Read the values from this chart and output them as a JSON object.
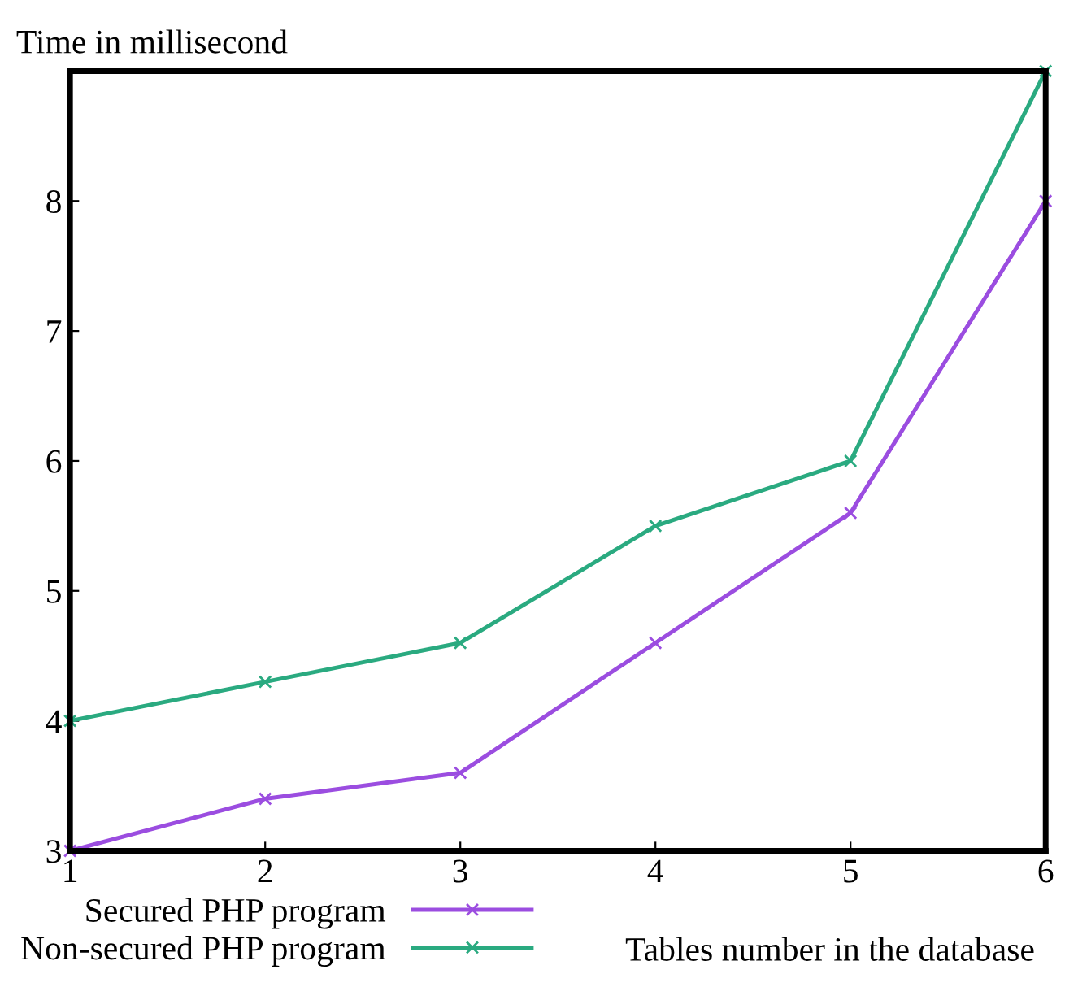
{
  "chart_data": {
    "type": "line",
    "ylabel": "Time in millisecond",
    "xlabel": "Tables number in the database",
    "x": [
      1,
      2,
      3,
      4,
      5,
      6
    ],
    "xlim": [
      1,
      6
    ],
    "xticks": [
      1,
      2,
      3,
      4,
      5,
      6
    ],
    "ylim": [
      3,
      9
    ],
    "yticks": [
      3,
      4,
      5,
      6,
      7,
      8
    ],
    "series": [
      {
        "name": "Secured PHP program",
        "color": "#9b4de0",
        "values": [
          3.0,
          3.4,
          3.6,
          4.6,
          5.6,
          8.0
        ]
      },
      {
        "name": "Non-secured PHP program",
        "color": "#2aaa80",
        "values": [
          4.0,
          4.3,
          4.6,
          5.5,
          6.0,
          9.0
        ]
      }
    ],
    "marker": "cross",
    "line_style": "solid",
    "grid": false,
    "legend": "bottom left"
  }
}
